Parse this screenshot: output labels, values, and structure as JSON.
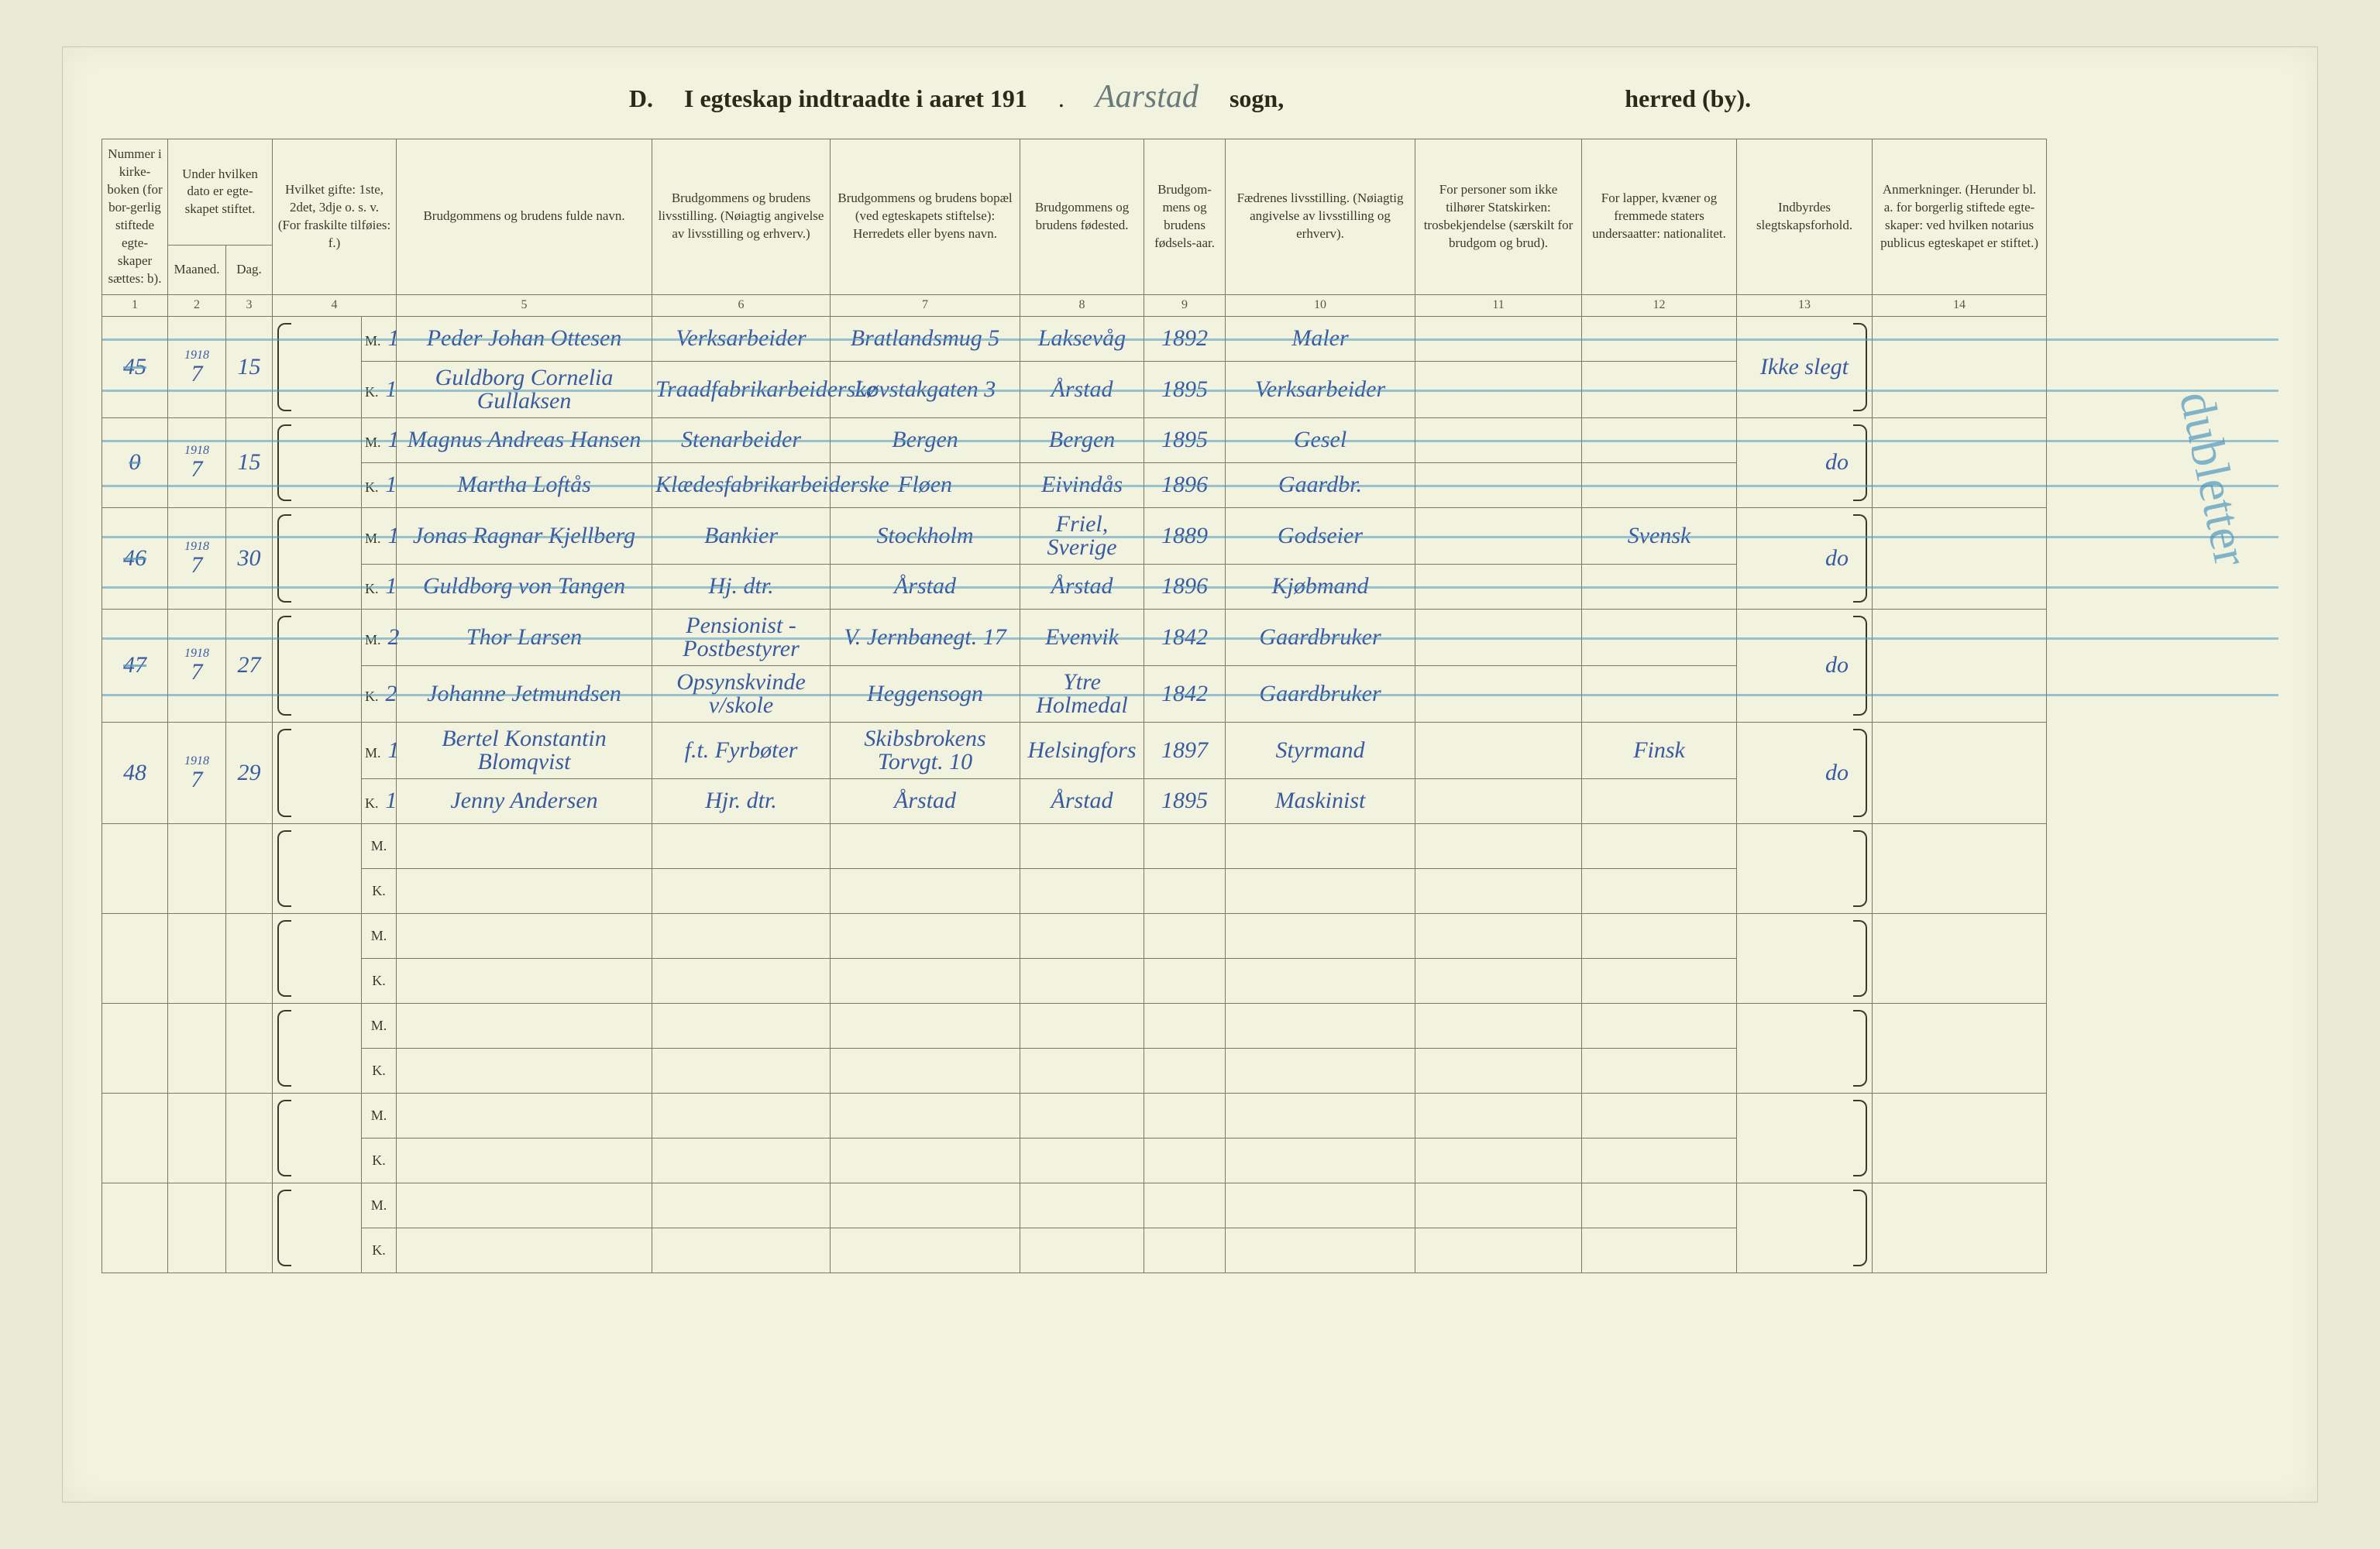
{
  "title": {
    "prefix": "D.",
    "main": "I egteskap indtraadte i aaret 191",
    "dot": ".",
    "parish_handwritten": "Aarstad",
    "sogn": "sogn,",
    "herred": "herred (by)."
  },
  "columns": {
    "c1": "Nummer i kirke-boken (for bor-gerlig stiftede egte-skaper sættes: b).",
    "c2_3": "Under hvilken dato er egte-skapet stiftet.",
    "c2": "Maaned.",
    "c3": "Dag.",
    "c4": "Hvilket gifte: 1ste, 2det, 3dje o. s. v. (For fraskilte tilføies: f.)",
    "c5": "Brudgommens og brudens fulde navn.",
    "c6": "Brudgommens og brudens livsstilling. (Nøiagtig angivelse av livsstilling og erhverv.)",
    "c7": "Brudgommens og brudens bopæl (ved egteskapets stiftelse): Herredets eller byens navn.",
    "c8": "Brudgommens og brudens fødested.",
    "c9": "Brudgom-mens og brudens fødsels-aar.",
    "c10": "Fædrenes livsstilling. (Nøiagtig angivelse av livsstilling og erhverv).",
    "c11": "For personer som ikke tilhører Statskirken: trosbekjendelse (særskilt for brudgom og brud).",
    "c12": "For lapper, kvæner og fremmede staters undersaatter: nationalitet.",
    "c13": "Indbyrdes slegtskapsforhold.",
    "c14": "Anmerkninger. (Herunder bl. a. for borgerlig stiftede egte-skaper: ved hvilken notarius publicus egteskapet er stiftet.)"
  },
  "col_numbers": [
    "1",
    "2",
    "3",
    "4",
    "5",
    "6",
    "7",
    "8",
    "9",
    "10",
    "11",
    "12",
    "13",
    "14"
  ],
  "year_small": "1918",
  "entries": [
    {
      "num": "45",
      "crossed": true,
      "year": "1918",
      "month": "7",
      "day": "15",
      "groom": {
        "gifte": "1",
        "name": "Peder Johan Ottesen",
        "occupation": "Verksarbeider",
        "residence": "Bratlandsmug 5",
        "birthplace": "Laksevåg",
        "birthyear": "1892",
        "father_occ": "Maler"
      },
      "bride": {
        "gifte": "1",
        "name": "Guldborg Cornelia Gullaksen",
        "occupation": "Traadfabrikarbeiderske",
        "residence": "Løvstakgaten 3",
        "birthplace": "Årstad",
        "birthyear": "1895",
        "father_occ": "Verksarbeider"
      },
      "col13": "Ikke slegt",
      "col14": ""
    },
    {
      "num": "0",
      "crossed": true,
      "year": "1918",
      "month": "7",
      "day": "15",
      "groom": {
        "gifte": "1",
        "name": "Magnus Andreas Hansen",
        "occupation": "Stenarbeider",
        "residence": "Bergen",
        "birthplace": "Bergen",
        "birthyear": "1895",
        "father_occ": "Gesel"
      },
      "bride": {
        "gifte": "1",
        "name": "Martha Loftås",
        "occupation": "Klædesfabrikarbeiderske",
        "residence": "Fløen",
        "birthplace": "Eivindås",
        "birthyear": "1896",
        "father_occ": "Gaardbr."
      },
      "col13": "do",
      "col14": ""
    },
    {
      "num": "46",
      "crossed": true,
      "year": "1918",
      "month": "7",
      "day": "30",
      "groom": {
        "gifte": "1",
        "name": "Jonas Ragnar Kjellberg",
        "occupation": "Bankier",
        "residence": "Stockholm",
        "birthplace": "Friel, Sverige",
        "birthyear": "1889",
        "father_occ": "Godseier",
        "col12": "Svensk"
      },
      "bride": {
        "gifte": "1",
        "name": "Guldborg von Tangen",
        "occupation": "Hj. dtr.",
        "residence": "Årstad",
        "birthplace": "Årstad",
        "birthyear": "1896",
        "father_occ": "Kjøbmand"
      },
      "col13": "do",
      "col14": ""
    },
    {
      "num": "47",
      "crossed": true,
      "year": "1918",
      "month": "7",
      "day": "27",
      "groom": {
        "gifte": "2",
        "name": "Thor Larsen",
        "occupation": "Pensionist - Postbestyrer",
        "residence": "V. Jernbanegt. 17",
        "birthplace": "Evenvik",
        "birthyear": "1842",
        "father_occ": "Gaardbruker"
      },
      "bride": {
        "gifte": "2",
        "name": "Johanne Jetmundsen",
        "occupation": "Opsynskvinde v/skole",
        "residence": "Heggensogn",
        "birthplace": "Ytre Holmedal",
        "birthyear": "1842",
        "father_occ": "Gaardbruker"
      },
      "col13": "do",
      "col14": ""
    },
    {
      "num": "48",
      "crossed": false,
      "year": "1918",
      "month": "7",
      "day": "29",
      "groom": {
        "gifte": "1",
        "name": "Bertel Konstantin Blomqvist",
        "occupation": "f.t. Fyrbøter",
        "residence": "Skibsbrokens Torvgt. 10",
        "birthplace": "Helsingfors",
        "birthyear": "1897",
        "father_occ": "Styrmand",
        "col12": "Finsk"
      },
      "bride": {
        "gifte": "1",
        "name": "Jenny Andersen",
        "occupation": "Hjr. dtr.",
        "residence": "Årstad",
        "birthplace": "Årstad",
        "birthyear": "1895",
        "father_occ": "Maskinist"
      },
      "col13": "do",
      "col14": ""
    }
  ],
  "side_annotation": "dubletter",
  "empty_pairs": 5,
  "colors": {
    "page_bg": "#f2f3df",
    "body_bg": "#e8ead5",
    "rule": "#7a7a5a",
    "ink_print": "#3a3a2a",
    "ink_hand": "#3a5aa0",
    "ink_cyan": "rgba(80,150,190,0.6)"
  }
}
